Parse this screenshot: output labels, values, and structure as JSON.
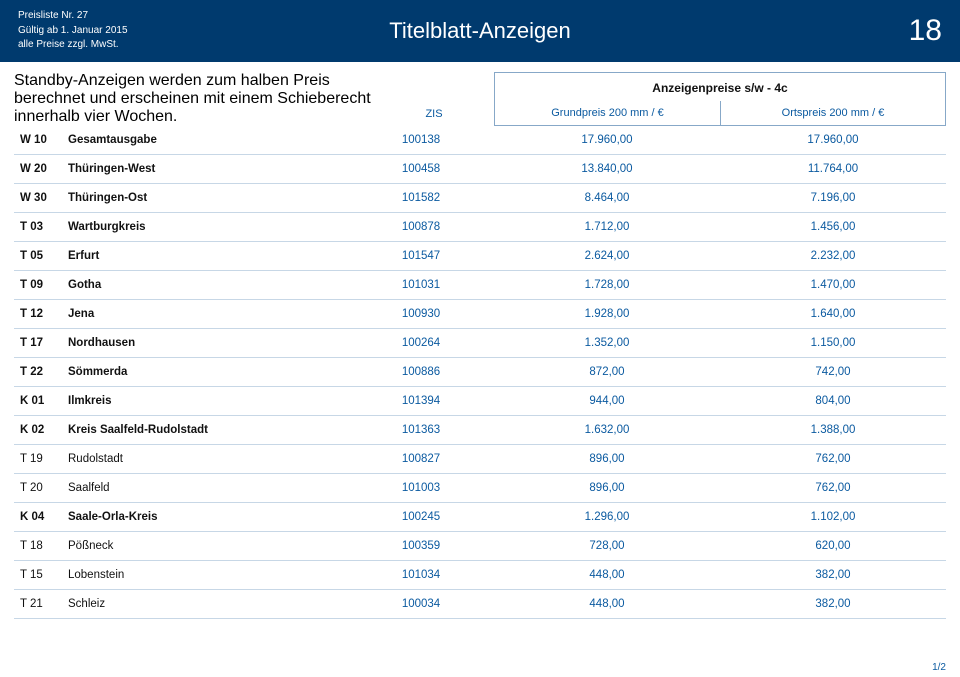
{
  "header": {
    "line1": "Preisliste Nr. 27",
    "line2": "Gültig ab 1. Januar 2015",
    "line3": "alle Preise zzgl. MwSt.",
    "title": "Titelblatt-Anzeigen",
    "page_big": "18"
  },
  "colors": {
    "header_bg": "#003a6e",
    "accent": "#0b5aa0",
    "border": "#87a8c8",
    "row_border": "#c7d7e6"
  },
  "note": "Standby-Anzeigen werden zum halben Preis berechnet und erscheinen mit einem Schieberecht innerhalb vier Wochen.",
  "columns": {
    "zis": "ZIS",
    "merge": "Anzeigenpreise s/w - 4c",
    "p1": "Grundpreis 200 mm / €",
    "p2": "Ortspreis 200 mm / €"
  },
  "rows": [
    {
      "code": "W 10",
      "name": "Gesamtausgabe",
      "zis": "100138",
      "p1": "17.960,00",
      "p2": "17.960,00",
      "bold": true
    },
    {
      "code": "W 20",
      "name": "Thüringen-West",
      "zis": "100458",
      "p1": "13.840,00",
      "p2": "11.764,00",
      "bold": true
    },
    {
      "code": "W 30",
      "name": "Thüringen-Ost",
      "zis": "101582",
      "p1": "8.464,00",
      "p2": "7.196,00",
      "bold": true
    },
    {
      "code": "T 03",
      "name": "Wartburgkreis",
      "zis": "100878",
      "p1": "1.712,00",
      "p2": "1.456,00",
      "bold": true
    },
    {
      "code": "T 05",
      "name": "Erfurt",
      "zis": "101547",
      "p1": "2.624,00",
      "p2": "2.232,00",
      "bold": true
    },
    {
      "code": "T 09",
      "name": "Gotha",
      "zis": "101031",
      "p1": "1.728,00",
      "p2": "1.470,00",
      "bold": true
    },
    {
      "code": "T 12",
      "name": "Jena",
      "zis": "100930",
      "p1": "1.928,00",
      "p2": "1.640,00",
      "bold": true
    },
    {
      "code": "T 17",
      "name": "Nordhausen",
      "zis": "100264",
      "p1": "1.352,00",
      "p2": "1.150,00",
      "bold": true
    },
    {
      "code": "T 22",
      "name": "Sömmerda",
      "zis": "100886",
      "p1": "872,00",
      "p2": "742,00",
      "bold": true
    },
    {
      "code": "K 01",
      "name": "Ilmkreis",
      "zis": "101394",
      "p1": "944,00",
      "p2": "804,00",
      "bold": true
    },
    {
      "code": "K 02",
      "name": "Kreis Saalfeld-Rudolstadt",
      "zis": "101363",
      "p1": "1.632,00",
      "p2": "1.388,00",
      "bold": true
    },
    {
      "code": "T 19",
      "name": "Rudolstadt",
      "zis": "100827",
      "p1": "896,00",
      "p2": "762,00",
      "bold": false
    },
    {
      "code": "T 20",
      "name": "Saalfeld",
      "zis": "101003",
      "p1": "896,00",
      "p2": "762,00",
      "bold": false
    },
    {
      "code": "K 04",
      "name": "Saale-Orla-Kreis",
      "zis": "100245",
      "p1": "1.296,00",
      "p2": "1.102,00",
      "bold": true
    },
    {
      "code": "T 18",
      "name": "Pößneck",
      "zis": "100359",
      "p1": "728,00",
      "p2": "620,00",
      "bold": false
    },
    {
      "code": "T 15",
      "name": "Lobenstein",
      "zis": "101034",
      "p1": "448,00",
      "p2": "382,00",
      "bold": false
    },
    {
      "code": "T 21",
      "name": "Schleiz",
      "zis": "100034",
      "p1": "448,00",
      "p2": "382,00",
      "bold": false
    }
  ],
  "pagenum": "1/2"
}
